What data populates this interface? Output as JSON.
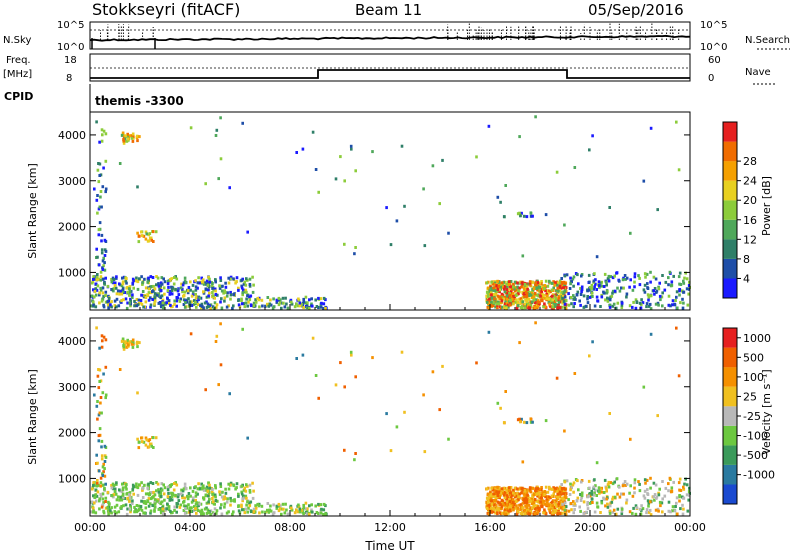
{
  "header": {
    "title": "Stokkseyri (fitACF)",
    "beam": "Beam 11",
    "date": "05/Sep/2016"
  },
  "top_panels": {
    "nsky_label": "N.Sky",
    "nsky_ticks": [
      "10^5",
      "10^0"
    ],
    "nsearch_label": "N.Search",
    "nsearch_ticks": [
      "10^5",
      "10^0"
    ],
    "freq_label_1": "Freq.",
    "freq_label_2": "[MHz]",
    "freq_ticks": [
      "18",
      "8"
    ],
    "nave_label": "Nave",
    "nave_ticks": [
      "60",
      "0"
    ],
    "cpid_label": "CPID",
    "cpid_value": "themis -3300"
  },
  "chart_data": [
    {
      "type": "heatmap",
      "name": "power",
      "ylabel": "Slant Range [km]",
      "yticks": [
        "1000",
        "2000",
        "3000",
        "4000"
      ],
      "ylim": [
        180,
        4500
      ],
      "colorbar_label": "Power [dB]",
      "colorbar_ticks": [
        "4",
        "8",
        "12",
        "16",
        "20",
        "24",
        "28"
      ],
      "colors": [
        "#1a1aff",
        "#1e4ea8",
        "#2f7f68",
        "#4fa85a",
        "#8ccc3a",
        "#e8d020",
        "#f5a000",
        "#f06c00",
        "#e62020"
      ]
    },
    {
      "type": "heatmap",
      "name": "velocity",
      "ylabel": "Slant Range [km]",
      "yticks": [
        "1000",
        "2000",
        "3000",
        "4000"
      ],
      "ylim": [
        180,
        4500
      ],
      "xlabel": "Time UT",
      "xticks": [
        "00:00",
        "04:00",
        "08:00",
        "12:00",
        "16:00",
        "20:00",
        "00:00"
      ],
      "colorbar_label": "Velocity [m s⁻¹]",
      "colorbar_ticks": [
        "1000",
        "500",
        "100",
        "25",
        "-25",
        "-100",
        "-500",
        "-1000"
      ],
      "colors": [
        "#1a4ad0",
        "#2a7aa0",
        "#3a9a5a",
        "#6cc840",
        "#b8b8b8",
        "#f0c020",
        "#f59000",
        "#f06000",
        "#e62020"
      ]
    }
  ]
}
